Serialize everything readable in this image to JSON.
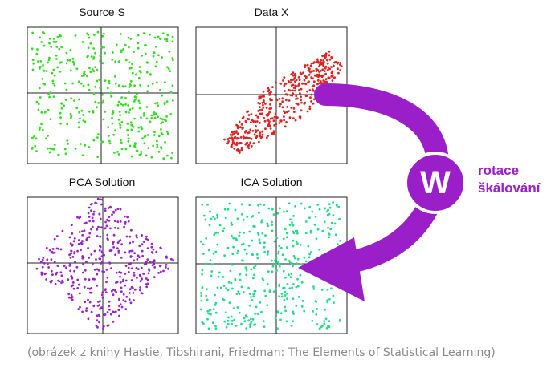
{
  "panels": [
    {
      "title": "Source S",
      "color": "#33dd22",
      "shape": "square"
    },
    {
      "title": "Data X",
      "color": "#dd2222",
      "shape": "diagonal"
    },
    {
      "title": "PCA Solution",
      "color": "#9922cc",
      "shape": "diamond"
    },
    {
      "title": "ICA Solution",
      "color": "#22dd88",
      "shape": "square"
    }
  ],
  "transform": {
    "symbol": "W",
    "labels": [
      "rotace",
      "škálování"
    ],
    "color": "#9b1fc9"
  },
  "caption": "(obrázek z knihy Hastie, Tibshirani, Friedman: The Elements of Statistical Learning)"
}
